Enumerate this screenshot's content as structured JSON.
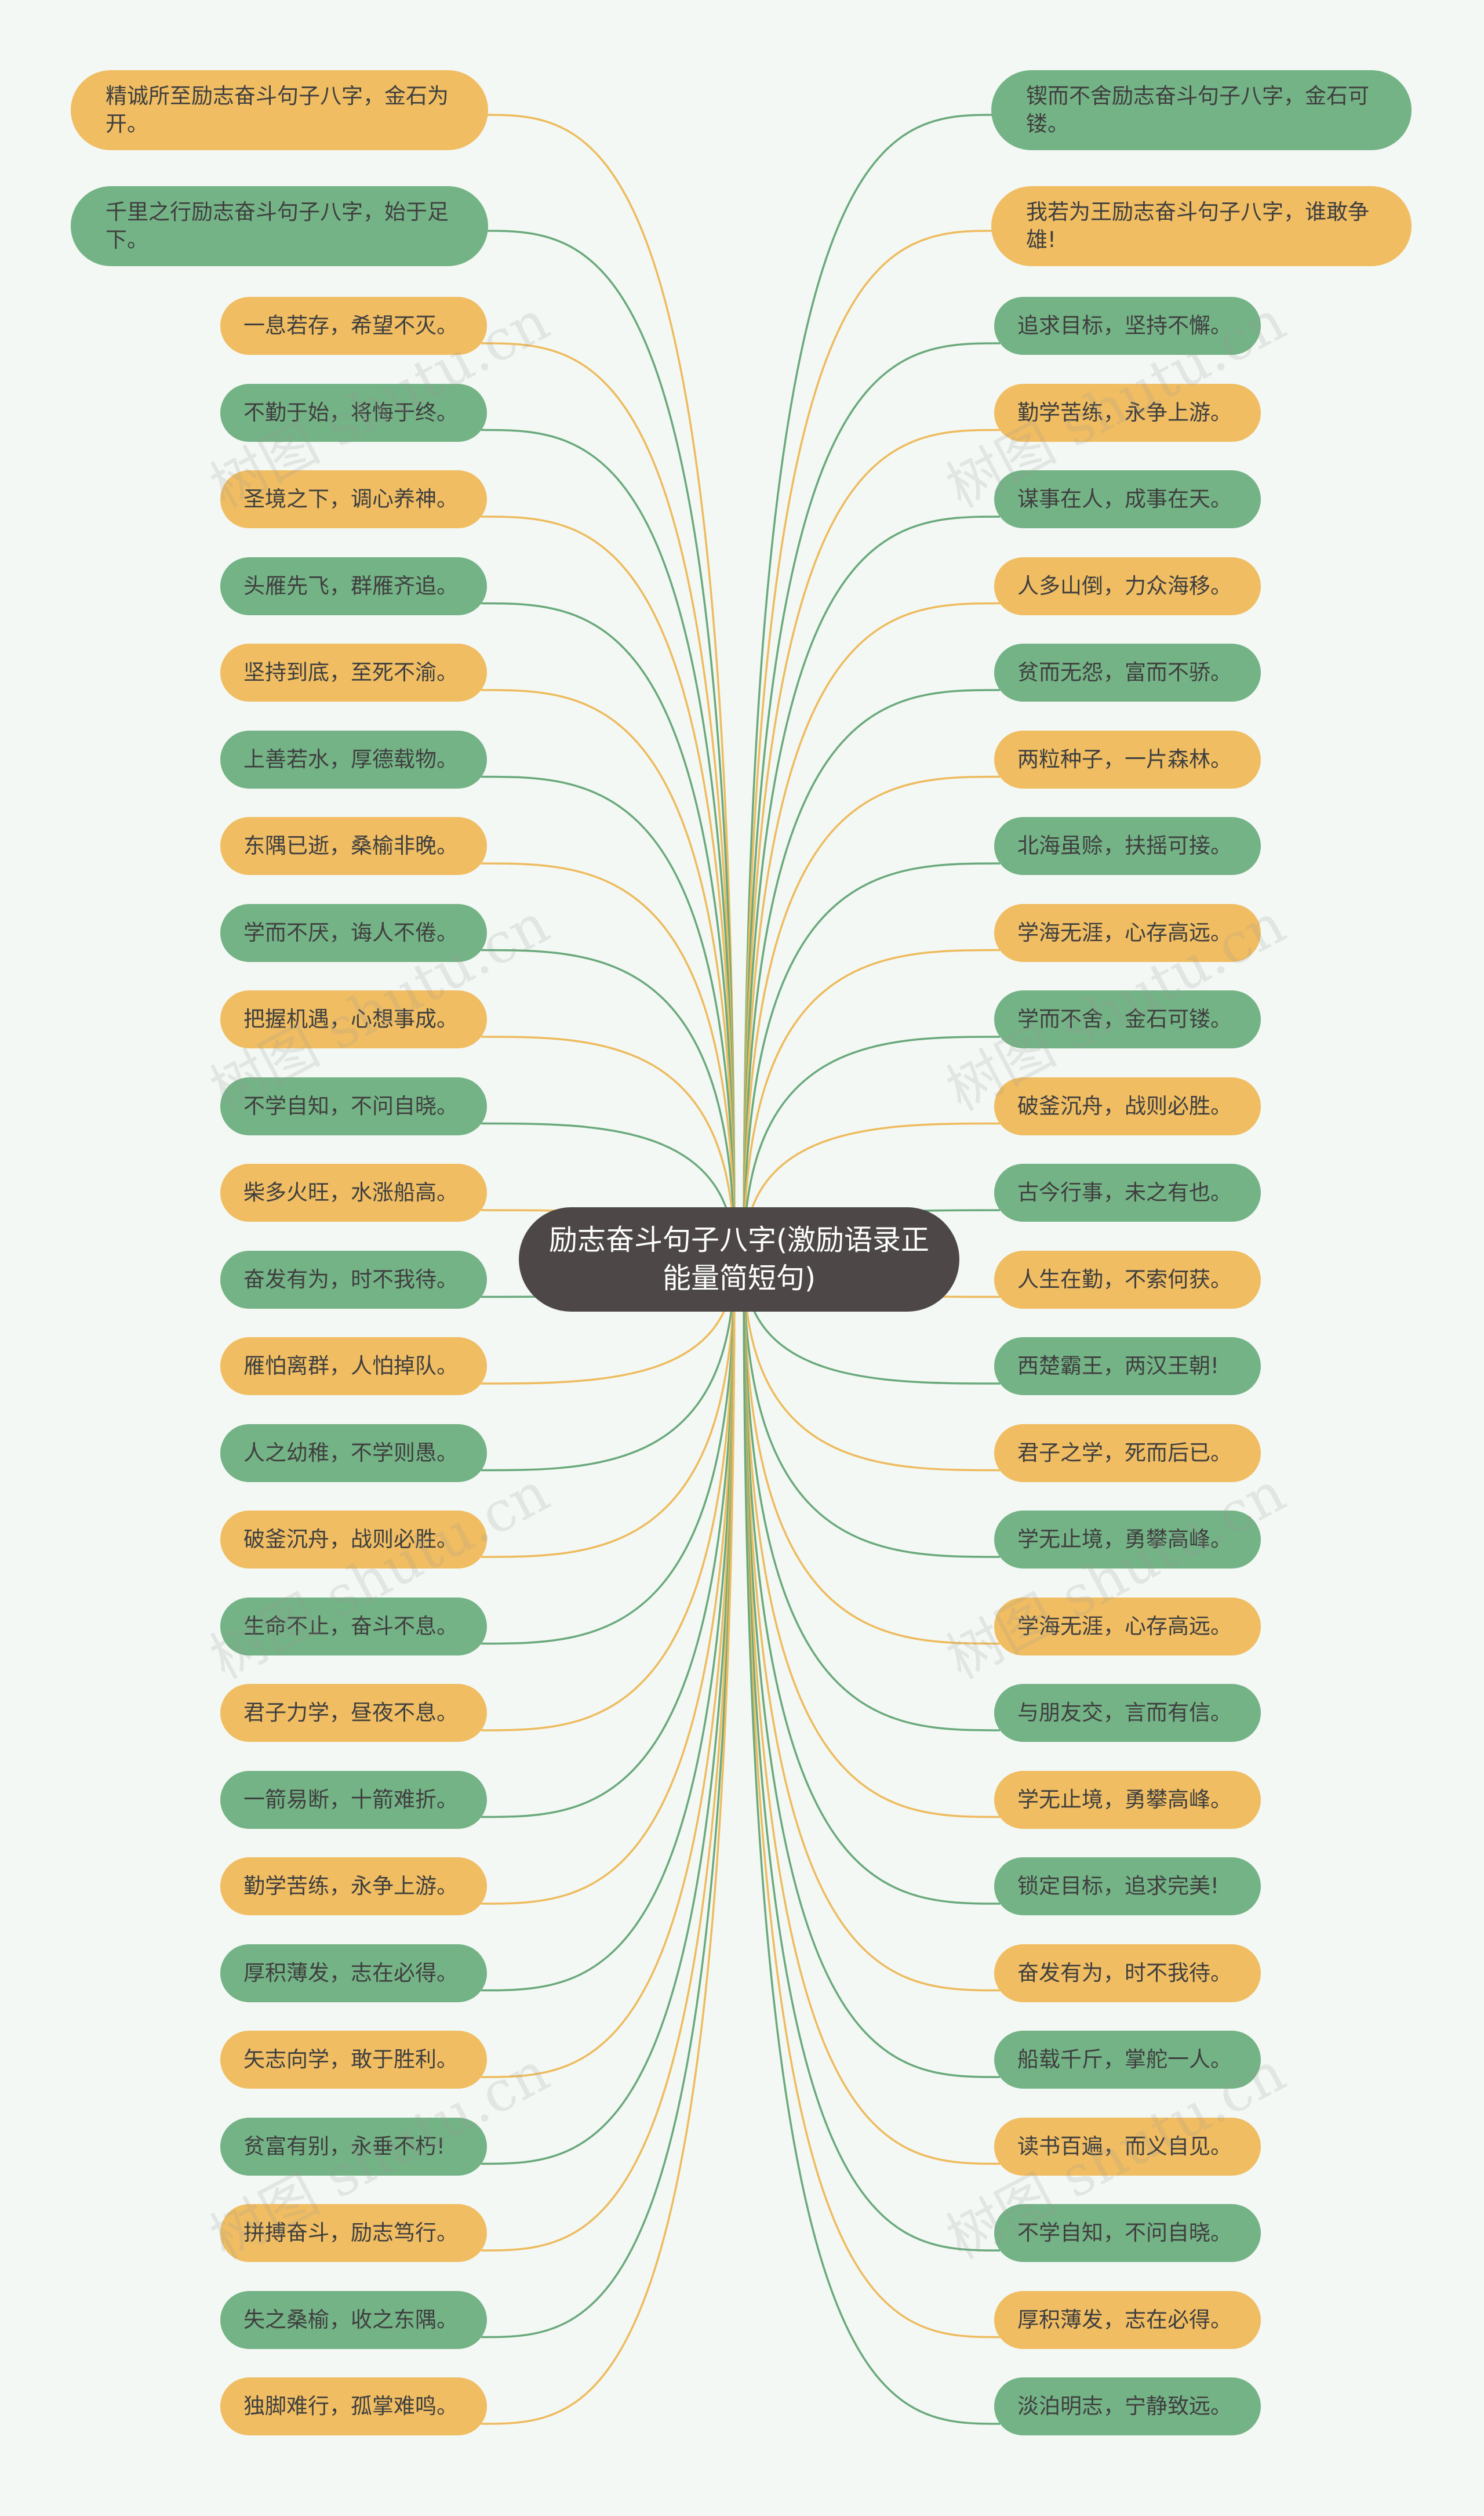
{
  "center": {
    "text": "励志奋斗句子八字(激励语录正能量简短句)"
  },
  "left": [
    {
      "text": "精诚所至励志奋斗句子八字，金石为开。",
      "color": "orange"
    },
    {
      "text": "千里之行励志奋斗句子八字，始于足下。",
      "color": "green"
    },
    {
      "text": "一息若存，希望不灭。",
      "color": "orange"
    },
    {
      "text": "不勤于始，将悔于终。",
      "color": "green"
    },
    {
      "text": "圣境之下，调心养神。",
      "color": "orange"
    },
    {
      "text": "头雁先飞，群雁齐追。",
      "color": "green"
    },
    {
      "text": "坚持到底，至死不渝。",
      "color": "orange"
    },
    {
      "text": "上善若水，厚德载物。",
      "color": "green"
    },
    {
      "text": "东隅已逝，桑榆非晚。",
      "color": "orange"
    },
    {
      "text": "学而不厌，诲人不倦。",
      "color": "green"
    },
    {
      "text": "把握机遇，心想事成。",
      "color": "orange"
    },
    {
      "text": "不学自知，不问自晓。",
      "color": "green"
    },
    {
      "text": "柴多火旺，水涨船高。",
      "color": "orange"
    },
    {
      "text": "奋发有为，时不我待。",
      "color": "green"
    },
    {
      "text": "雁怕离群，人怕掉队。",
      "color": "orange"
    },
    {
      "text": "人之幼稚，不学则愚。",
      "color": "green"
    },
    {
      "text": "破釜沉舟，战则必胜。",
      "color": "orange"
    },
    {
      "text": "生命不止，奋斗不息。",
      "color": "green"
    },
    {
      "text": "君子力学，昼夜不息。",
      "color": "orange"
    },
    {
      "text": "一箭易断，十箭难折。",
      "color": "green"
    },
    {
      "text": "勤学苦练，永争上游。",
      "color": "orange"
    },
    {
      "text": "厚积薄发，志在必得。",
      "color": "green"
    },
    {
      "text": "矢志向学，敢于胜利。",
      "color": "orange"
    },
    {
      "text": "贫富有别，永垂不朽!",
      "color": "green"
    },
    {
      "text": "拼搏奋斗，励志笃行。",
      "color": "orange"
    },
    {
      "text": "失之桑榆，收之东隅。",
      "color": "green"
    },
    {
      "text": "独脚难行，孤掌难鸣。",
      "color": "orange"
    }
  ],
  "right": [
    {
      "text": "锲而不舍励志奋斗句子八字，金石可镂。",
      "color": "green"
    },
    {
      "text": "我若为王励志奋斗句子八字，谁敢争雄!",
      "color": "orange"
    },
    {
      "text": "追求目标，坚持不懈。",
      "color": "green"
    },
    {
      "text": "勤学苦练，永争上游。",
      "color": "orange"
    },
    {
      "text": "谋事在人，成事在天。",
      "color": "green"
    },
    {
      "text": "人多山倒，力众海移。",
      "color": "orange"
    },
    {
      "text": "贫而无怨，富而不骄。",
      "color": "green"
    },
    {
      "text": "两粒种子，一片森林。",
      "color": "orange"
    },
    {
      "text": "北海虽赊，扶摇可接。",
      "color": "green"
    },
    {
      "text": "学海无涯，心存高远。",
      "color": "orange"
    },
    {
      "text": "学而不舍，金石可镂。",
      "color": "green"
    },
    {
      "text": "破釜沉舟，战则必胜。",
      "color": "orange"
    },
    {
      "text": "古今行事，未之有也。",
      "color": "green"
    },
    {
      "text": "人生在勤，不索何获。",
      "color": "orange"
    },
    {
      "text": "西楚霸王，两汉王朝!",
      "color": "green"
    },
    {
      "text": "君子之学，死而后已。",
      "color": "orange"
    },
    {
      "text": "学无止境，勇攀高峰。",
      "color": "green"
    },
    {
      "text": "学海无涯，心存高远。",
      "color": "orange"
    },
    {
      "text": "与朋友交，言而有信。",
      "color": "green"
    },
    {
      "text": "学无止境，勇攀高峰。",
      "color": "orange"
    },
    {
      "text": "锁定目标，追求完美!",
      "color": "green"
    },
    {
      "text": "奋发有为，时不我待。",
      "color": "orange"
    },
    {
      "text": "船载千斤，掌舵一人。",
      "color": "green"
    },
    {
      "text": "读书百遍，而义自见。",
      "color": "orange"
    },
    {
      "text": "不学自知，不问自晓。",
      "color": "green"
    },
    {
      "text": "厚积薄发，志在必得。",
      "color": "orange"
    },
    {
      "text": "淡泊明志，宁静致远。",
      "color": "green"
    }
  ],
  "palette": {
    "orange": "#f0bd62",
    "green": "#74b386",
    "orange_line": "#eebb5e",
    "green_line": "#6aa97c",
    "center": "#4d4847"
  },
  "watermark": {
    "text": "树图 shutu.cn"
  }
}
